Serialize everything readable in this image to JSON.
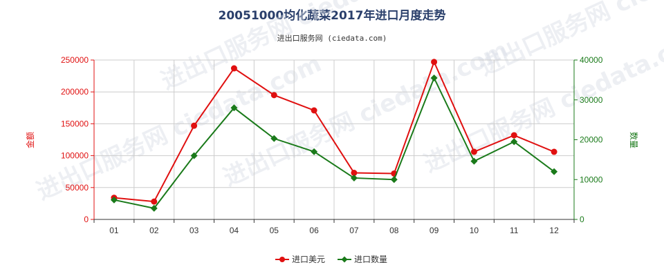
{
  "title": "20051000均化蔬菜2017年进口月度走势",
  "subtitle": "进出口服务网 (ciedata.com)",
  "watermark": "进出口服务网 ciedata.com",
  "colors": {
    "usd": "#e01010",
    "qty": "#1a7a1a",
    "grid": "#cccccc",
    "axis": "#333333"
  },
  "chart_data": {
    "type": "line",
    "categories": [
      "01",
      "02",
      "03",
      "04",
      "05",
      "06",
      "07",
      "08",
      "09",
      "10",
      "11",
      "12"
    ],
    "series": [
      {
        "name": "进口美元",
        "axis": "left",
        "marker": "circle",
        "values": [
          34000,
          28000,
          147000,
          237000,
          195000,
          171000,
          73000,
          72000,
          247000,
          106000,
          132000,
          106000
        ]
      },
      {
        "name": "进口数量",
        "axis": "right",
        "marker": "diamond",
        "values": [
          4900,
          2800,
          16000,
          28000,
          20300,
          17000,
          10400,
          10000,
          35500,
          14600,
          19500,
          12000
        ]
      }
    ],
    "ylabel_left": "金额",
    "ylabel_right": "数量",
    "ylim_left": [
      0,
      250000
    ],
    "ylim_right": [
      0,
      40000
    ],
    "yticks_left": [
      "0",
      "50000",
      "100000",
      "150000",
      "200000",
      "250000"
    ],
    "yticks_right": [
      "0",
      "10000",
      "20000",
      "30000",
      "40000"
    ],
    "grid": true,
    "legend_position": "bottom"
  }
}
